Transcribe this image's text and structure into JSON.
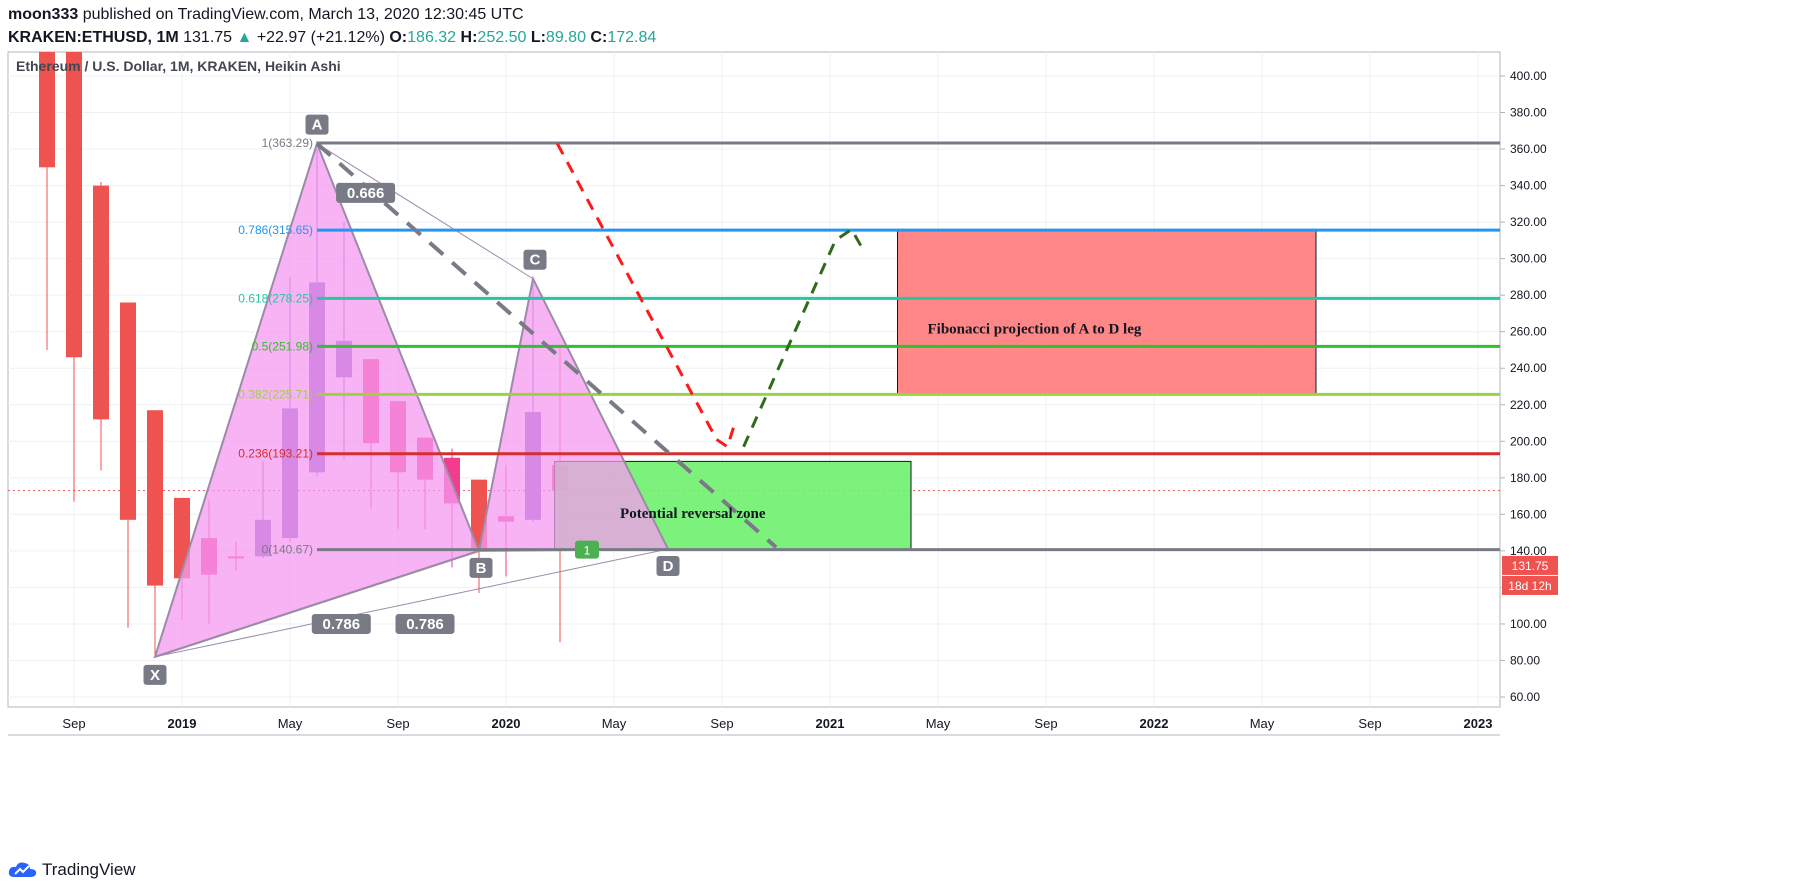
{
  "header": {
    "author": "moon333",
    "published_text": "published on TradingView.com, March 13, 2020 12:30:45 UTC",
    "symbol": "KRAKEN:ETHUSD, 1M",
    "last": "131.75",
    "change": "+22.97 (+21.12%)",
    "o_label": "O:",
    "o_value": "186.32",
    "h_label": "H:",
    "h_value": "252.50",
    "l_label": "L:",
    "l_value": "89.80",
    "c_label": "C:",
    "c_value": "172.84"
  },
  "footer": {
    "brand": "TradingView"
  },
  "colors": {
    "bear": "#ef5350",
    "bear_pink": "#f23c8d",
    "bull": "#7e57c2",
    "pattern_fill": "#f59af0",
    "green_zone": "#6ef06e",
    "red_zone": "#ff7a7a",
    "fib_1": "#787b86",
    "fib_0786": "#2196f3",
    "fib_0618": "#26c6a0",
    "fib_05": "#2ec12e",
    "fib_0382": "#9bd244",
    "fib_0236": "#d32f2f",
    "fib_0": "#787b86"
  },
  "chart_data": {
    "type": "candlestick",
    "title": "Ethereum / U.S. Dollar, 1M, KRAKEN, Heikin Ashi",
    "y_axis": {
      "min": 50,
      "max": 410,
      "ticks": [
        400,
        380,
        360,
        340,
        320,
        300,
        280,
        260,
        240,
        220,
        200,
        180,
        160,
        140,
        120,
        100,
        80,
        60
      ]
    },
    "x_axis_labels": [
      "Sep",
      "2019",
      "May",
      "Sep",
      "2020",
      "May",
      "Sep",
      "2021",
      "May",
      "Sep",
      "2022",
      "May",
      "Sep",
      "2023"
    ],
    "x_axis_bold": [
      "2019",
      "2020",
      "2021",
      "2022",
      "2023"
    ],
    "x_axis_months": [
      "2018-09",
      "2019-01",
      "2019-05",
      "2019-09",
      "2020-01",
      "2020-05",
      "2020-09",
      "2021-01",
      "2021-05",
      "2021-09",
      "2022-01",
      "2022-05",
      "2022-09",
      "2023-01"
    ],
    "current_price": 131.75,
    "price_label": "131.75",
    "countdown_label": "18d 12h",
    "dotted_price": 173,
    "candles": [
      {
        "t": "2018-08",
        "o": 480,
        "h": 490,
        "l": 250,
        "c": 350,
        "color": "bear"
      },
      {
        "t": "2018-09",
        "o": 415,
        "h": 420,
        "l": 167,
        "c": 246,
        "color": "bear"
      },
      {
        "t": "2018-10",
        "o": 340,
        "h": 342,
        "l": 184,
        "c": 212,
        "color": "bear"
      },
      {
        "t": "2018-11",
        "o": 276,
        "h": 276,
        "l": 98,
        "c": 157,
        "color": "bear"
      },
      {
        "t": "2018-12",
        "o": 217,
        "h": 217,
        "l": 82,
        "c": 121,
        "color": "bear"
      },
      {
        "t": "2019-01",
        "o": 169,
        "h": 169,
        "l": 102,
        "c": 125,
        "color": "bear"
      },
      {
        "t": "2019-02",
        "o": 147,
        "h": 168,
        "l": 100,
        "c": 127,
        "color": "bear_pink"
      },
      {
        "t": "2019-03",
        "o": 137,
        "h": 145,
        "l": 129,
        "c": 136,
        "color": "bear_pink"
      },
      {
        "t": "2019-04",
        "o": 137,
        "h": 189,
        "l": 136,
        "c": 157,
        "color": "bull"
      },
      {
        "t": "2019-05",
        "o": 147,
        "h": 290,
        "l": 145,
        "c": 218,
        "color": "bull"
      },
      {
        "t": "2019-06",
        "o": 183,
        "h": 360,
        "l": 181,
        "c": 287,
        "color": "bull"
      },
      {
        "t": "2019-07",
        "o": 235,
        "h": 320,
        "l": 190,
        "c": 255,
        "color": "bull"
      },
      {
        "t": "2019-08",
        "o": 245,
        "h": 245,
        "l": 163,
        "c": 199,
        "color": "bear_pink"
      },
      {
        "t": "2019-09",
        "o": 222,
        "h": 222,
        "l": 152,
        "c": 183,
        "color": "bear_pink"
      },
      {
        "t": "2019-10",
        "o": 202,
        "h": 202,
        "l": 152,
        "c": 179,
        "color": "bear_pink"
      },
      {
        "t": "2019-11",
        "o": 191,
        "h": 196,
        "l": 131,
        "c": 166,
        "color": "bear_pink"
      },
      {
        "t": "2019-12",
        "o": 179,
        "h": 179,
        "l": 117,
        "c": 140,
        "color": "bear"
      },
      {
        "t": "2020-01",
        "o": 159,
        "h": 187,
        "l": 126,
        "c": 156,
        "color": "bear_pink"
      },
      {
        "t": "2020-02",
        "o": 157,
        "h": 288,
        "l": 156,
        "c": 216,
        "color": "bull"
      },
      {
        "t": "2020-03",
        "o": 187,
        "h": 253,
        "l": 90,
        "c": 173,
        "color": "bear"
      }
    ],
    "fib_levels": [
      {
        "label": "1(363.29)",
        "value": 363.29,
        "color": "fib_1"
      },
      {
        "label": "0.786(315.65)",
        "value": 315.65,
        "color": "fib_0786"
      },
      {
        "label": "0.618(278.25)",
        "value": 278.25,
        "color": "fib_0618"
      },
      {
        "label": "0.5(251.98)",
        "value": 251.98,
        "color": "fib_05"
      },
      {
        "label": "0.382(225.71)",
        "value": 225.71,
        "color": "fib_0382"
      },
      {
        "label": "0.236(193.21)",
        "value": 193.21,
        "color": "fib_0236"
      },
      {
        "label": "0(140.67)",
        "value": 140.67,
        "color": "fib_0"
      }
    ],
    "pattern_points": [
      {
        "label": "X",
        "t": "2018-12",
        "price": 82
      },
      {
        "label": "A",
        "t": "2019-06",
        "price": 363
      },
      {
        "label": "B",
        "t": "2019-12",
        "price": 140
      },
      {
        "label": "C",
        "t": "2020-02",
        "price": 289
      },
      {
        "label": "D",
        "t": "2020-07",
        "price": 141
      }
    ],
    "ratio_labels": [
      "0.666",
      "0.786",
      "0.786"
    ],
    "zones": [
      {
        "text": "Potential reversal zone",
        "t_start": "2020-02.8",
        "t_end": "2021-04",
        "top": 189,
        "bottom": 141,
        "color": "green_zone"
      },
      {
        "text": "Fibonacci projection of A to D leg",
        "t_start": "2021-03.5",
        "t_end": "2022-07",
        "top": 316,
        "bottom": 226,
        "color": "red_zone"
      }
    ],
    "badge_one": "1",
    "projection_red": [
      [
        "2020-02.9",
        363
      ],
      [
        "2020-08.8",
        201
      ]
    ],
    "projection_red_hook": [
      [
        "2020-08.8",
        201
      ],
      [
        "2020-09.2",
        197
      ],
      [
        "2020-09.5",
        211
      ]
    ],
    "projection_green": [
      [
        "2020-09.8",
        197
      ],
      [
        "2021-01.2",
        310
      ],
      [
        "2021-01.8",
        316
      ],
      [
        "2021-02.3",
        303
      ]
    ],
    "gray_dash": [
      [
        "2019-06",
        363
      ],
      [
        "2020-11",
        142
      ]
    ]
  }
}
